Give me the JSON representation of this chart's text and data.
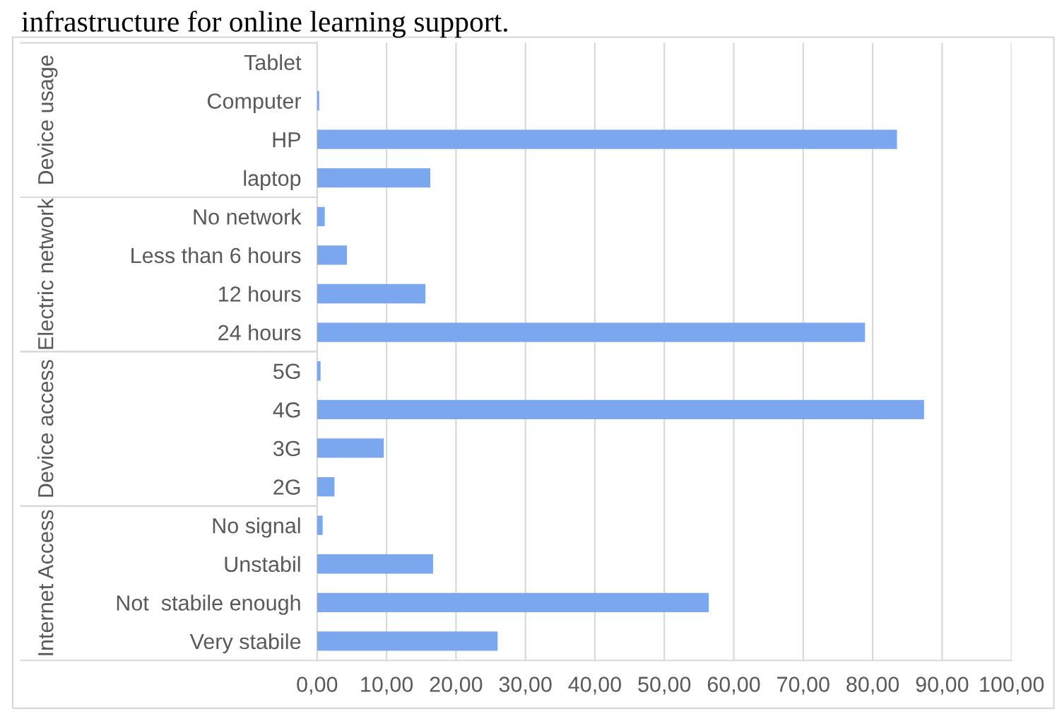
{
  "chart_data": {
    "type": "bar",
    "orientation": "horizontal",
    "title": "infrastructure for online learning support.",
    "categories": [
      "Tablet",
      "Computer",
      "HP",
      "laptop",
      "No network",
      "Less than 6 hours",
      "12 hours",
      "24 hours",
      "5G",
      "4G",
      "3G",
      "2G",
      "No signal",
      "Unstabil",
      "Not  stabile enough",
      "Very stabile"
    ],
    "values": [
      0,
      0.3,
      83.5,
      16.3,
      1.1,
      4.3,
      15.6,
      78.9,
      0.5,
      87.4,
      9.6,
      2.5,
      0.8,
      16.7,
      56.4,
      26.0
    ],
    "color": "#7ba7ee",
    "annotations": [
      "Device usage",
      "Electric network",
      "Device access",
      "Internet Access"
    ],
    "xlim": [
      0,
      100
    ],
    "xticks": [
      {
        "value": 0,
        "label": "0,00"
      },
      {
        "value": 10,
        "label": "10,00"
      },
      {
        "value": 20,
        "label": "20,00"
      },
      {
        "value": 30,
        "label": "30,00"
      },
      {
        "value": 40,
        "label": "40,00"
      },
      {
        "value": 50,
        "label": "50,00"
      },
      {
        "value": 60,
        "label": "60,00"
      },
      {
        "value": 70,
        "label": "70,00"
      },
      {
        "value": 80,
        "label": "80,00"
      },
      {
        "value": 90,
        "label": "90,00"
      },
      {
        "value": 100,
        "label": "100,00"
      }
    ],
    "grid": "x"
  }
}
